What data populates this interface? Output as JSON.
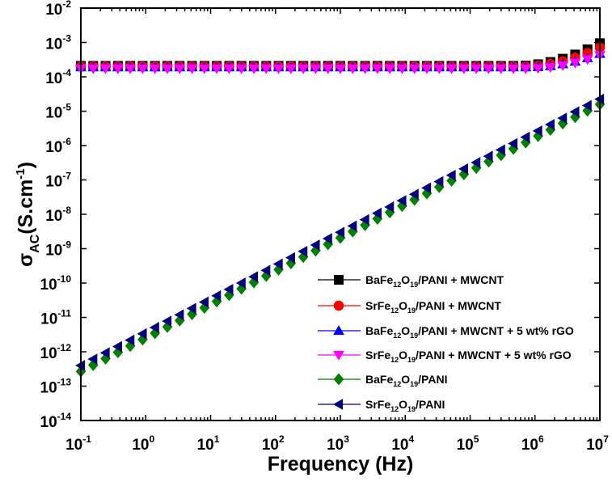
{
  "chart_data": {
    "type": "scatter",
    "x_scale": "log",
    "y_scale": "log",
    "xlabel": "Frequency (Hz)",
    "ylabel": {
      "base": "σ",
      "sub": "AC",
      "unit_prefix": "(S.cm",
      "unit_exp": "-1",
      "unit_suffix": ")"
    },
    "xlim": [
      0.1,
      10000000
    ],
    "ylim": [
      1e-14,
      0.01
    ],
    "x_ticks": [
      {
        "base": "10",
        "exp": "-1"
      },
      {
        "base": "10",
        "exp": "0"
      },
      {
        "base": "10",
        "exp": "1"
      },
      {
        "base": "10",
        "exp": "2"
      },
      {
        "base": "10",
        "exp": "3"
      },
      {
        "base": "10",
        "exp": "4"
      },
      {
        "base": "10",
        "exp": "5"
      },
      {
        "base": "10",
        "exp": "6"
      },
      {
        "base": "10",
        "exp": "7"
      }
    ],
    "y_ticks": [
      {
        "base": "10",
        "exp": "-14"
      },
      {
        "base": "10",
        "exp": "-13"
      },
      {
        "base": "10",
        "exp": "-12"
      },
      {
        "base": "10",
        "exp": "-11"
      },
      {
        "base": "10",
        "exp": "-10"
      },
      {
        "base": "10",
        "exp": "-9"
      },
      {
        "base": "10",
        "exp": "-8"
      },
      {
        "base": "10",
        "exp": "-7"
      },
      {
        "base": "10",
        "exp": "-6"
      },
      {
        "base": "10",
        "exp": "-5"
      },
      {
        "base": "10",
        "exp": "-4"
      },
      {
        "base": "10",
        "exp": "-3"
      },
      {
        "base": "10",
        "exp": "-2"
      }
    ],
    "legend_position": "bottom-right",
    "points_per_series": 43,
    "series": [
      {
        "name": "BaFe12O19/PANI + MWCNT",
        "label_parts": [
          {
            "t": "BaFe"
          },
          {
            "t": "12",
            "sub": true
          },
          {
            "t": "O"
          },
          {
            "t": "19",
            "sub": true
          },
          {
            "t": "/PANI + MWCNT"
          }
        ],
        "color": "#000000",
        "marker": "square",
        "curve": {
          "log_y0": -3.68,
          "log_x_knee": 5.7,
          "log_y_end": -3.02
        }
      },
      {
        "name": "SrFe12O19/PANI + MWCNT",
        "label_parts": [
          {
            "t": "SrFe"
          },
          {
            "t": "12",
            "sub": true
          },
          {
            "t": "O"
          },
          {
            "t": "19",
            "sub": true
          },
          {
            "t": "/PANI + MWCNT"
          }
        ],
        "color": "#ff0000",
        "marker": "circle",
        "curve": {
          "log_y0": -3.7,
          "log_x_knee": 5.8,
          "log_y_end": -3.15
        }
      },
      {
        "name": "BaFe12O19/PANI + MWCNT + 5 wt% rGO",
        "label_parts": [
          {
            "t": "BaFe"
          },
          {
            "t": "12",
            "sub": true
          },
          {
            "t": "O"
          },
          {
            "t": "19",
            "sub": true
          },
          {
            "t": "/PANI + MWCNT + 5 wt% rGO"
          }
        ],
        "color": "#0000ff",
        "marker": "triangle-up",
        "curve": {
          "log_y0": -3.72,
          "log_x_knee": 5.9,
          "log_y_end": -3.33
        }
      },
      {
        "name": "SrFe12O19/PANI + MWCNT + 5 wt% rGO",
        "label_parts": [
          {
            "t": "SrFe"
          },
          {
            "t": "12",
            "sub": true
          },
          {
            "t": "O"
          },
          {
            "t": "19",
            "sub": true
          },
          {
            "t": "/PANI + MWCNT + 5 wt% rGO"
          }
        ],
        "color": "#ff00ff",
        "marker": "triangle-down",
        "curve": {
          "log_y0": -3.76,
          "log_x_knee": 5.9,
          "log_y_end": -3.37
        }
      },
      {
        "name": "BaFe12O19/PANI",
        "label_parts": [
          {
            "t": "BaFe"
          },
          {
            "t": "12",
            "sub": true
          },
          {
            "t": "O"
          },
          {
            "t": "19",
            "sub": true
          },
          {
            "t": "/PANI"
          }
        ],
        "color": "#008000",
        "marker": "diamond",
        "line": {
          "log_y_start": -12.57,
          "log_y_end": -4.8
        }
      },
      {
        "name": "SrFe12O19/PANI",
        "label_parts": [
          {
            "t": "SrFe"
          },
          {
            "t": "12",
            "sub": true
          },
          {
            "t": "O"
          },
          {
            "t": "19",
            "sub": true
          },
          {
            "t": "/PANI"
          }
        ],
        "color": "#000080",
        "marker": "triangle-left",
        "line": {
          "log_y_start": -12.4,
          "log_y_end": -4.65
        }
      }
    ]
  }
}
